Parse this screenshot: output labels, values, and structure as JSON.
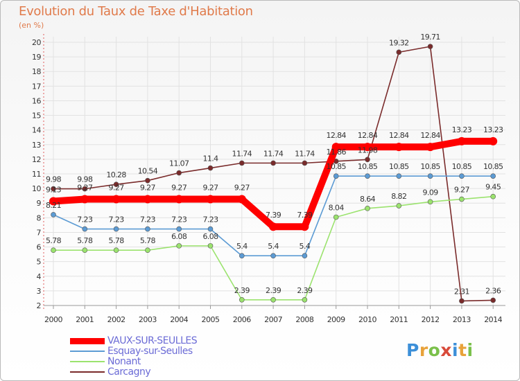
{
  "colors": {
    "vaux": "#ff0000",
    "esquay": "#5c9bd4",
    "nonant": "#9be36e",
    "carcagny": "#7a2b2b",
    "grid": "#e2e2e2",
    "axis_accent": "#e05a5a",
    "title": "#e07a4a",
    "legend_text": "#6b6bd6"
  },
  "chart_data": {
    "type": "line",
    "title": "Evolution du Taux de Taxe d'Habitation",
    "subtitle": "(en %)",
    "xlabel": "",
    "ylabel": "",
    "x": [
      "2000",
      "2001",
      "2002",
      "2003",
      "2004",
      "2005",
      "2006",
      "2007",
      "2008",
      "2009",
      "2010",
      "2011",
      "2012",
      "2013",
      "2014"
    ],
    "ylim": [
      2,
      20
    ],
    "yticks": [
      2,
      3,
      4,
      5,
      6,
      7,
      8,
      9,
      10,
      11,
      12,
      13,
      14,
      15,
      16,
      17,
      18,
      19,
      20
    ],
    "grid": true,
    "legend_position": "bottom-left",
    "series": [
      {
        "name": "Carcagny",
        "key": "carcagny",
        "values": [
          9.98,
          9.98,
          10.28,
          10.54,
          11.07,
          11.4,
          11.74,
          11.74,
          11.74,
          11.86,
          11.98,
          19.32,
          19.71,
          2.31,
          2.36
        ],
        "labels": [
          "9.98",
          "9.98",
          "10.28",
          "10.54",
          "11.07",
          "11.4",
          "11.74",
          "11.74",
          "11.74",
          "11.86",
          "11.98",
          "19.32",
          "19.71",
          "2.31",
          "2.36"
        ]
      },
      {
        "name": "Nonant",
        "key": "nonant",
        "values": [
          5.78,
          5.78,
          5.78,
          5.78,
          6.08,
          6.08,
          2.39,
          2.39,
          2.39,
          8.04,
          8.64,
          8.82,
          9.09,
          9.27,
          9.45
        ],
        "labels": [
          "5.78",
          "5.78",
          "5.78",
          "5.78",
          "6.08",
          "6.08",
          "2.39",
          "2.39",
          "2.39",
          "8.04",
          "8.64",
          "8.82",
          "9.09",
          "9.27",
          "9.45"
        ]
      },
      {
        "name": "Esquay-sur-Seulles",
        "key": "esquay",
        "values": [
          8.21,
          7.23,
          7.23,
          7.23,
          7.23,
          7.23,
          5.4,
          5.4,
          5.4,
          10.85,
          10.85,
          10.85,
          10.85,
          10.85,
          10.85
        ],
        "labels": [
          "8.21",
          "7.23",
          "7.23",
          "7.23",
          "7.23",
          "7.23",
          "5.4",
          "5.4",
          "5.4",
          "10.85",
          "10.85",
          "10.85",
          "10.85",
          "10.85",
          "10.85"
        ]
      },
      {
        "name": "VAUX-SUR-SEULLES",
        "key": "vaux",
        "values": [
          9.13,
          9.27,
          9.27,
          9.27,
          9.27,
          9.27,
          9.27,
          7.39,
          7.39,
          12.84,
          12.84,
          12.84,
          12.84,
          13.23,
          13.23
        ],
        "labels": [
          "9.13",
          "9.27",
          "9.27",
          "9.27",
          "9.27",
          "9.27",
          "9.27",
          "7.39",
          "7.39",
          "12.84",
          "12.84",
          "12.84",
          "12.84",
          "13.23",
          "13.23"
        ]
      }
    ]
  },
  "legend": {
    "items": [
      {
        "label": "VAUX-SUR-SEULLES",
        "key": "vaux"
      },
      {
        "label": "Esquay-sur-Seulles",
        "key": "esquay"
      },
      {
        "label": "Nonant",
        "key": "nonant"
      },
      {
        "label": "Carcagny",
        "key": "carcagny"
      }
    ]
  },
  "logo": {
    "text": "Proxiti",
    "letters": [
      {
        "char": "P",
        "color": "#3c8fd8"
      },
      {
        "char": "r",
        "color": "#e8a23a"
      },
      {
        "char": "o",
        "color": "#7ac04a"
      },
      {
        "char": "x",
        "color": "#d84a3a"
      },
      {
        "char": "i",
        "color": "#3c8fd8"
      },
      {
        "char": "t",
        "color": "#e8a23a"
      },
      {
        "char": "i",
        "color": "#7ac04a"
      }
    ]
  }
}
